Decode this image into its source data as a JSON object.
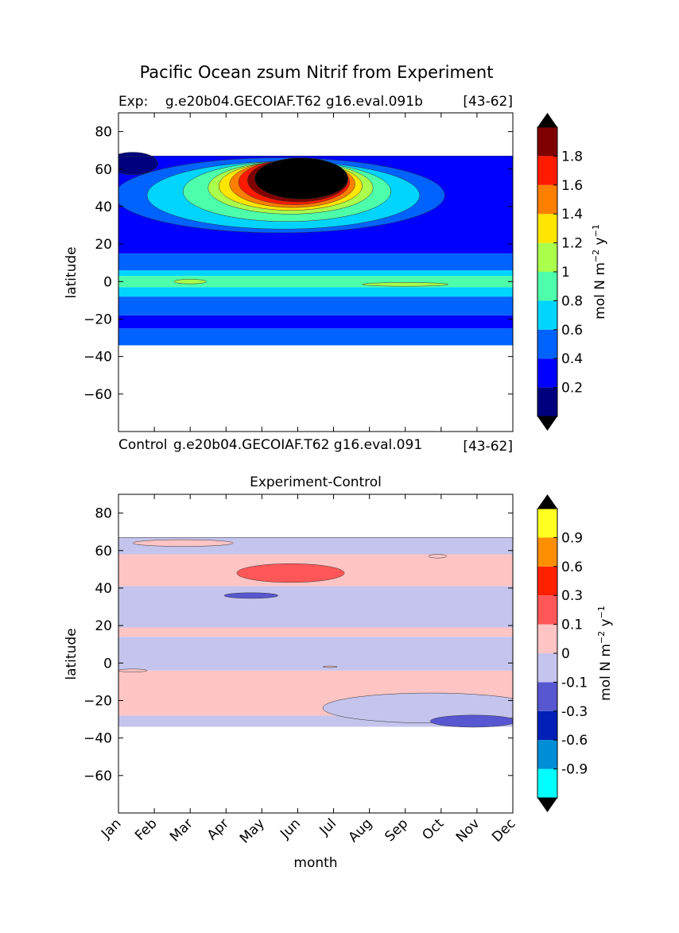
{
  "figure": {
    "suptitle": "Pacific Ocean zsum Nitrif from Experiment"
  },
  "chart_data": [
    {
      "type": "heatmap",
      "panel": "experiment",
      "title_left": "Exp:    g.e20b04.GECOIAF.T62 g16.eval.091b",
      "title_right": "[43-62]",
      "xlabel": "",
      "ylabel": "latitude",
      "xlim": [
        0,
        11
      ],
      "ylim": [
        -80,
        90
      ],
      "yticks": [
        80,
        60,
        40,
        20,
        0,
        -20,
        -40,
        -60
      ],
      "ytick_labels": [
        "80",
        "60",
        "40",
        "20",
        "0",
        "−20",
        "−40",
        "−60"
      ],
      "data_lat_range": [
        -34,
        67
      ],
      "colorbar": {
        "label": "mol N m^-2 y^-1",
        "label_main": "mol N m",
        "label_exp1": "−2",
        "label_mid": " y",
        "label_exp2": "−1",
        "levels": [
          0,
          0.2,
          0.4,
          0.6,
          0.8,
          1.0,
          1.2,
          1.4,
          1.6,
          1.8,
          2.0
        ],
        "tick_labels": [
          "0.2",
          "0.4",
          "0.6",
          "0.8",
          "1",
          "1.2",
          "1.4",
          "1.6",
          "1.8"
        ],
        "colors": [
          "#00007f",
          "#0000ff",
          "#0063ff",
          "#00d4ff",
          "#4dffaa",
          "#aaff4d",
          "#ffe500",
          "#ff7f00",
          "#ff1a00",
          "#7f0000"
        ],
        "over_color": "#000000",
        "under_color": "#000000"
      },
      "bands": [
        {
          "lat": [
            -34,
            -25
          ],
          "level": 2
        },
        {
          "lat": [
            -25,
            -18
          ],
          "level": 1
        },
        {
          "lat": [
            -18,
            -8
          ],
          "level": 2
        },
        {
          "lat": [
            -8,
            -3
          ],
          "level": 3
        },
        {
          "lat": [
            -3,
            3
          ],
          "level": 4
        },
        {
          "lat": [
            3,
            6
          ],
          "level": 3
        },
        {
          "lat": [
            6,
            15
          ],
          "level": 2
        },
        {
          "lat": [
            15,
            67
          ],
          "level": 1
        }
      ],
      "features": [
        {
          "kind": "blob",
          "level": 2,
          "center": [
            4.5,
            46
          ],
          "radius": [
            4.6,
            20
          ]
        },
        {
          "kind": "blob",
          "level": 3,
          "center": [
            4.6,
            46
          ],
          "radius": [
            3.8,
            18
          ]
        },
        {
          "kind": "blob",
          "level": 4,
          "center": [
            4.7,
            48
          ],
          "radius": [
            2.9,
            16
          ]
        },
        {
          "kind": "blob",
          "level": 5,
          "center": [
            4.8,
            50
          ],
          "radius": [
            2.3,
            14
          ]
        },
        {
          "kind": "blob",
          "level": 6,
          "center": [
            4.8,
            51
          ],
          "radius": [
            2.0,
            13
          ]
        },
        {
          "kind": "blob",
          "level": 7,
          "center": [
            4.85,
            52
          ],
          "radius": [
            1.75,
            12.5
          ]
        },
        {
          "kind": "blob",
          "level": 8,
          "center": [
            4.9,
            53
          ],
          "radius": [
            1.55,
            12
          ]
        },
        {
          "kind": "blob",
          "level": 9,
          "center": [
            5.0,
            54
          ],
          "radius": [
            1.4,
            11.5
          ]
        },
        {
          "kind": "blob",
          "level": 10,
          "center": [
            5.1,
            55
          ],
          "radius": [
            1.3,
            11
          ]
        },
        {
          "kind": "blob",
          "level": 5,
          "center": [
            2.0,
            0
          ],
          "radius": [
            0.45,
            1.2
          ]
        },
        {
          "kind": "blob",
          "level": 5,
          "center": [
            8.0,
            -1.5
          ],
          "radius": [
            1.2,
            1.0
          ]
        },
        {
          "kind": "blob",
          "level": 0,
          "center": [
            0.4,
            63
          ],
          "radius": [
            0.7,
            6
          ]
        }
      ]
    },
    {
      "type": "heatmap",
      "panel": "difference",
      "title_center": "Experiment-Control",
      "xlabel": "month",
      "ylabel": "latitude",
      "xlim": [
        0,
        11
      ],
      "ylim": [
        -80,
        90
      ],
      "yticks": [
        80,
        60,
        40,
        20,
        0,
        -20,
        -40,
        -60
      ],
      "ytick_labels": [
        "80",
        "60",
        "40",
        "20",
        "0",
        "−20",
        "−40",
        "−60"
      ],
      "categories": [
        "Jan",
        "Feb",
        "Mar",
        "Apr",
        "May",
        "Jun",
        "Jul",
        "Aug",
        "Sep",
        "Oct",
        "Nov",
        "Dec"
      ],
      "data_lat_range": [
        -34,
        67
      ],
      "colorbar": {
        "label": "mol N m^-2 y^-1",
        "label_main": "mol N m",
        "label_exp1": "−2",
        "label_mid": " y",
        "label_exp2": "−1",
        "levels": [
          -1.2,
          -0.9,
          -0.6,
          -0.3,
          -0.1,
          0,
          0.1,
          0.3,
          0.6,
          0.9,
          1.2
        ],
        "tick_labels": [
          "-0.9",
          "-0.6",
          "-0.3",
          "-0.1",
          "0",
          "0.1",
          "0.3",
          "0.6",
          "0.9"
        ],
        "colors": [
          "#00ffff",
          "#008fd6",
          "#0020b8",
          "#5757d1",
          "#c4c4ed",
          "#ffc4c4",
          "#ff5757",
          "#ff2000",
          "#ff8f00",
          "#ffff20"
        ],
        "over_color": "#000000",
        "under_color": "#000000"
      },
      "bands": [
        {
          "lat": [
            -34,
            -28
          ],
          "level": 4
        },
        {
          "lat": [
            -28,
            -4
          ],
          "level": 5
        },
        {
          "lat": [
            -4,
            14
          ],
          "level": 4
        },
        {
          "lat": [
            14,
            19
          ],
          "level": 5
        },
        {
          "lat": [
            19,
            41
          ],
          "level": 4
        },
        {
          "lat": [
            41,
            58
          ],
          "level": 5
        },
        {
          "lat": [
            58,
            67
          ],
          "level": 4
        }
      ],
      "features": [
        {
          "kind": "blob",
          "level": 4,
          "center": [
            8.7,
            -24
          ],
          "radius": [
            3.0,
            8
          ]
        },
        {
          "kind": "blob",
          "level": 3,
          "center": [
            9.9,
            -31
          ],
          "radius": [
            1.2,
            3.2
          ]
        },
        {
          "kind": "blob",
          "level": 6,
          "center": [
            4.8,
            48
          ],
          "radius": [
            1.5,
            5
          ]
        },
        {
          "kind": "blob",
          "level": 3,
          "center": [
            3.7,
            36
          ],
          "radius": [
            0.75,
            1.5
          ]
        },
        {
          "kind": "blob",
          "level": 5,
          "center": [
            1.8,
            64
          ],
          "radius": [
            1.4,
            1.8
          ]
        },
        {
          "kind": "blob",
          "level": 5,
          "center": [
            8.9,
            57
          ],
          "radius": [
            0.25,
            1.0
          ]
        },
        {
          "kind": "blob",
          "level": 5,
          "center": [
            0.4,
            -4
          ],
          "radius": [
            0.4,
            0.8
          ]
        },
        {
          "kind": "blob",
          "level": 5,
          "center": [
            5.9,
            -2
          ],
          "radius": [
            0.2,
            0.4
          ]
        }
      ]
    }
  ],
  "control_title": {
    "left": "Control",
    "middle": "g.e20b04.GECOIAF.T62 g16.eval.091",
    "right": "[43-62]"
  }
}
